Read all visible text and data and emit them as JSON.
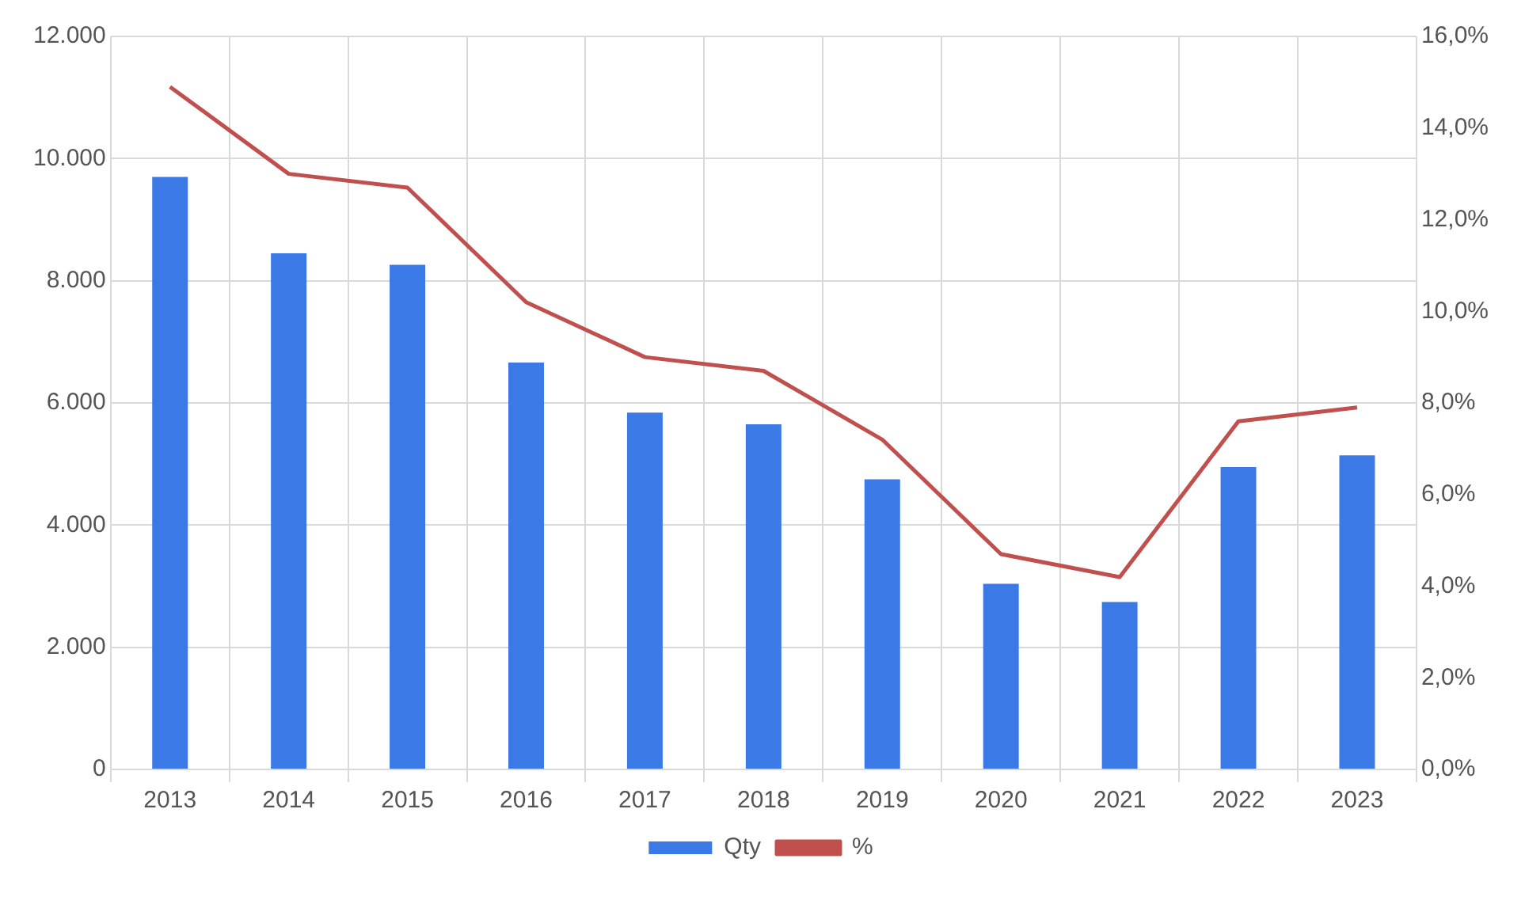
{
  "chart_data": {
    "type": "bar",
    "categories": [
      "2013",
      "2014",
      "2015",
      "2016",
      "2017",
      "2018",
      "2019",
      "2020",
      "2021",
      "2022",
      "2023"
    ],
    "series": [
      {
        "name": "Qty",
        "color": "#3b7ae6",
        "values": [
          9700,
          8450,
          8260,
          6660,
          5840,
          5650,
          4750,
          3040,
          2740,
          4950,
          5140
        ]
      },
      {
        "name": "%",
        "type": "line",
        "axis": "y2",
        "color": "#c0504d",
        "values": [
          14.9,
          13.0,
          12.7,
          10.2,
          9.0,
          8.7,
          7.2,
          4.7,
          4.2,
          7.6,
          7.9
        ]
      }
    ],
    "ylim": [
      0,
      12000
    ],
    "yticks": [
      {
        "value": 0,
        "label": "0"
      },
      {
        "value": 2000,
        "label": "2.000"
      },
      {
        "value": 4000,
        "label": "4.000"
      },
      {
        "value": 6000,
        "label": "6.000"
      },
      {
        "value": 8000,
        "label": "8.000"
      },
      {
        "value": 10000,
        "label": "10.000"
      },
      {
        "value": 12000,
        "label": "12.000"
      }
    ],
    "y2lim": [
      0,
      16
    ],
    "y2ticks": [
      {
        "value": 0,
        "label": "0,0%"
      },
      {
        "value": 2,
        "label": "2,0%"
      },
      {
        "value": 4,
        "label": "4,0%"
      },
      {
        "value": 6,
        "label": "6,0%"
      },
      {
        "value": 8,
        "label": "8,0%"
      },
      {
        "value": 10,
        "label": "10,0%"
      },
      {
        "value": 12,
        "label": "12,0%"
      },
      {
        "value": 14,
        "label": "14,0%"
      },
      {
        "value": 16,
        "label": "16,0%"
      }
    ],
    "grid": true,
    "legend": "bottom",
    "marker": "none"
  }
}
